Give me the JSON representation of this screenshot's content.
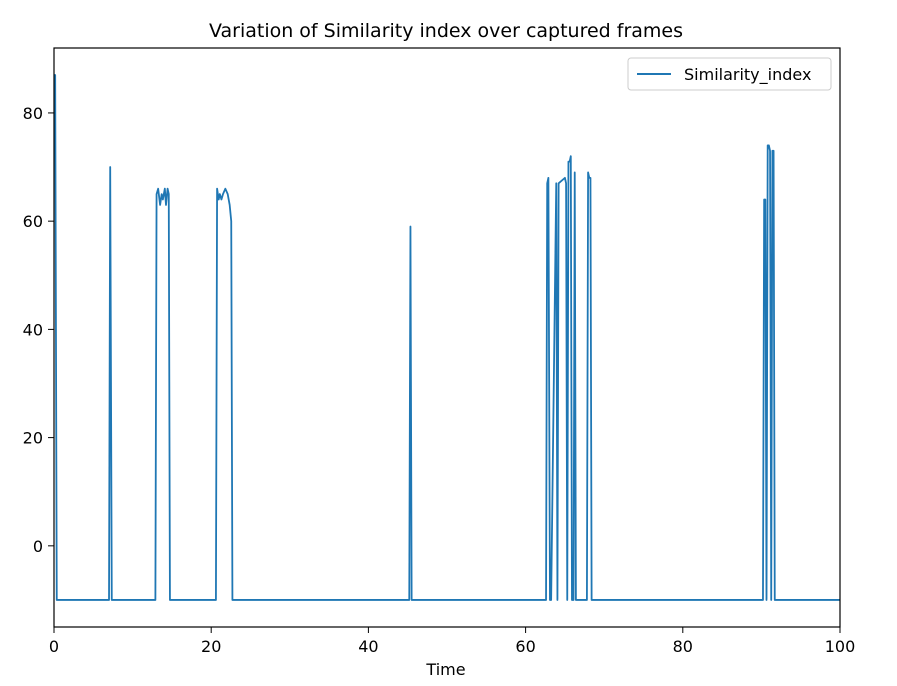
{
  "chart_data": {
    "type": "line",
    "title": "Variation of Similarity index over captured frames",
    "xlabel": "Time",
    "ylabel": "",
    "xlim": [
      0,
      100
    ],
    "ylim": [
      -15,
      92
    ],
    "xticks": [
      "0",
      "20",
      "40",
      "60",
      "80",
      "100"
    ],
    "xtick_values": [
      0,
      20,
      40,
      60,
      80,
      100
    ],
    "yticks": [
      "0",
      "20",
      "40",
      "60",
      "80"
    ],
    "ytick_values": [
      0,
      20,
      40,
      60,
      80
    ],
    "grid": false,
    "legend_position": "top-right",
    "series": [
      {
        "name": "Similarity_index",
        "color": "#1f77b4",
        "x": [
          0,
          0.15,
          0.35,
          7,
          7.15,
          7.35,
          12.9,
          13.05,
          13.25,
          13.5,
          13.7,
          13.85,
          14.1,
          14.25,
          14.45,
          14.6,
          14.75,
          14.9,
          20.6,
          20.75,
          20.95,
          21.1,
          21.3,
          21.5,
          21.8,
          22.1,
          22.35,
          22.55,
          22.7,
          45.2,
          45.35,
          45.5,
          62.6,
          62.75,
          62.9,
          63.1,
          63.25,
          63.9,
          64.05,
          64.2,
          65.0,
          65.15,
          65.3,
          65.45,
          65.6,
          65.75,
          65.9,
          66.1,
          66.25,
          66.4,
          67.8,
          67.95,
          68.1,
          68.25,
          68.4,
          68.6,
          90.2,
          90.35,
          90.5,
          90.65,
          90.8,
          90.95,
          91.1,
          91.25,
          91.4,
          91.55,
          91.7,
          91.85,
          100
        ],
        "y": [
          87,
          87,
          -10,
          -10,
          70,
          -10,
          -10,
          65,
          66,
          63,
          65,
          64,
          66,
          63,
          66,
          65,
          -10,
          -10,
          -10,
          66,
          64,
          65,
          64,
          65,
          66,
          65,
          63,
          60,
          -10,
          -10,
          59,
          -10,
          -10,
          67,
          68,
          -10,
          -10,
          67,
          -10,
          67,
          68,
          67,
          -10,
          71,
          71,
          72,
          -10,
          -10,
          69,
          -10,
          -10,
          69,
          68,
          68,
          -10,
          -10,
          -10,
          64,
          64,
          -10,
          74,
          74,
          73,
          -10,
          73,
          73,
          -10,
          -10,
          -10
        ]
      }
    ]
  }
}
